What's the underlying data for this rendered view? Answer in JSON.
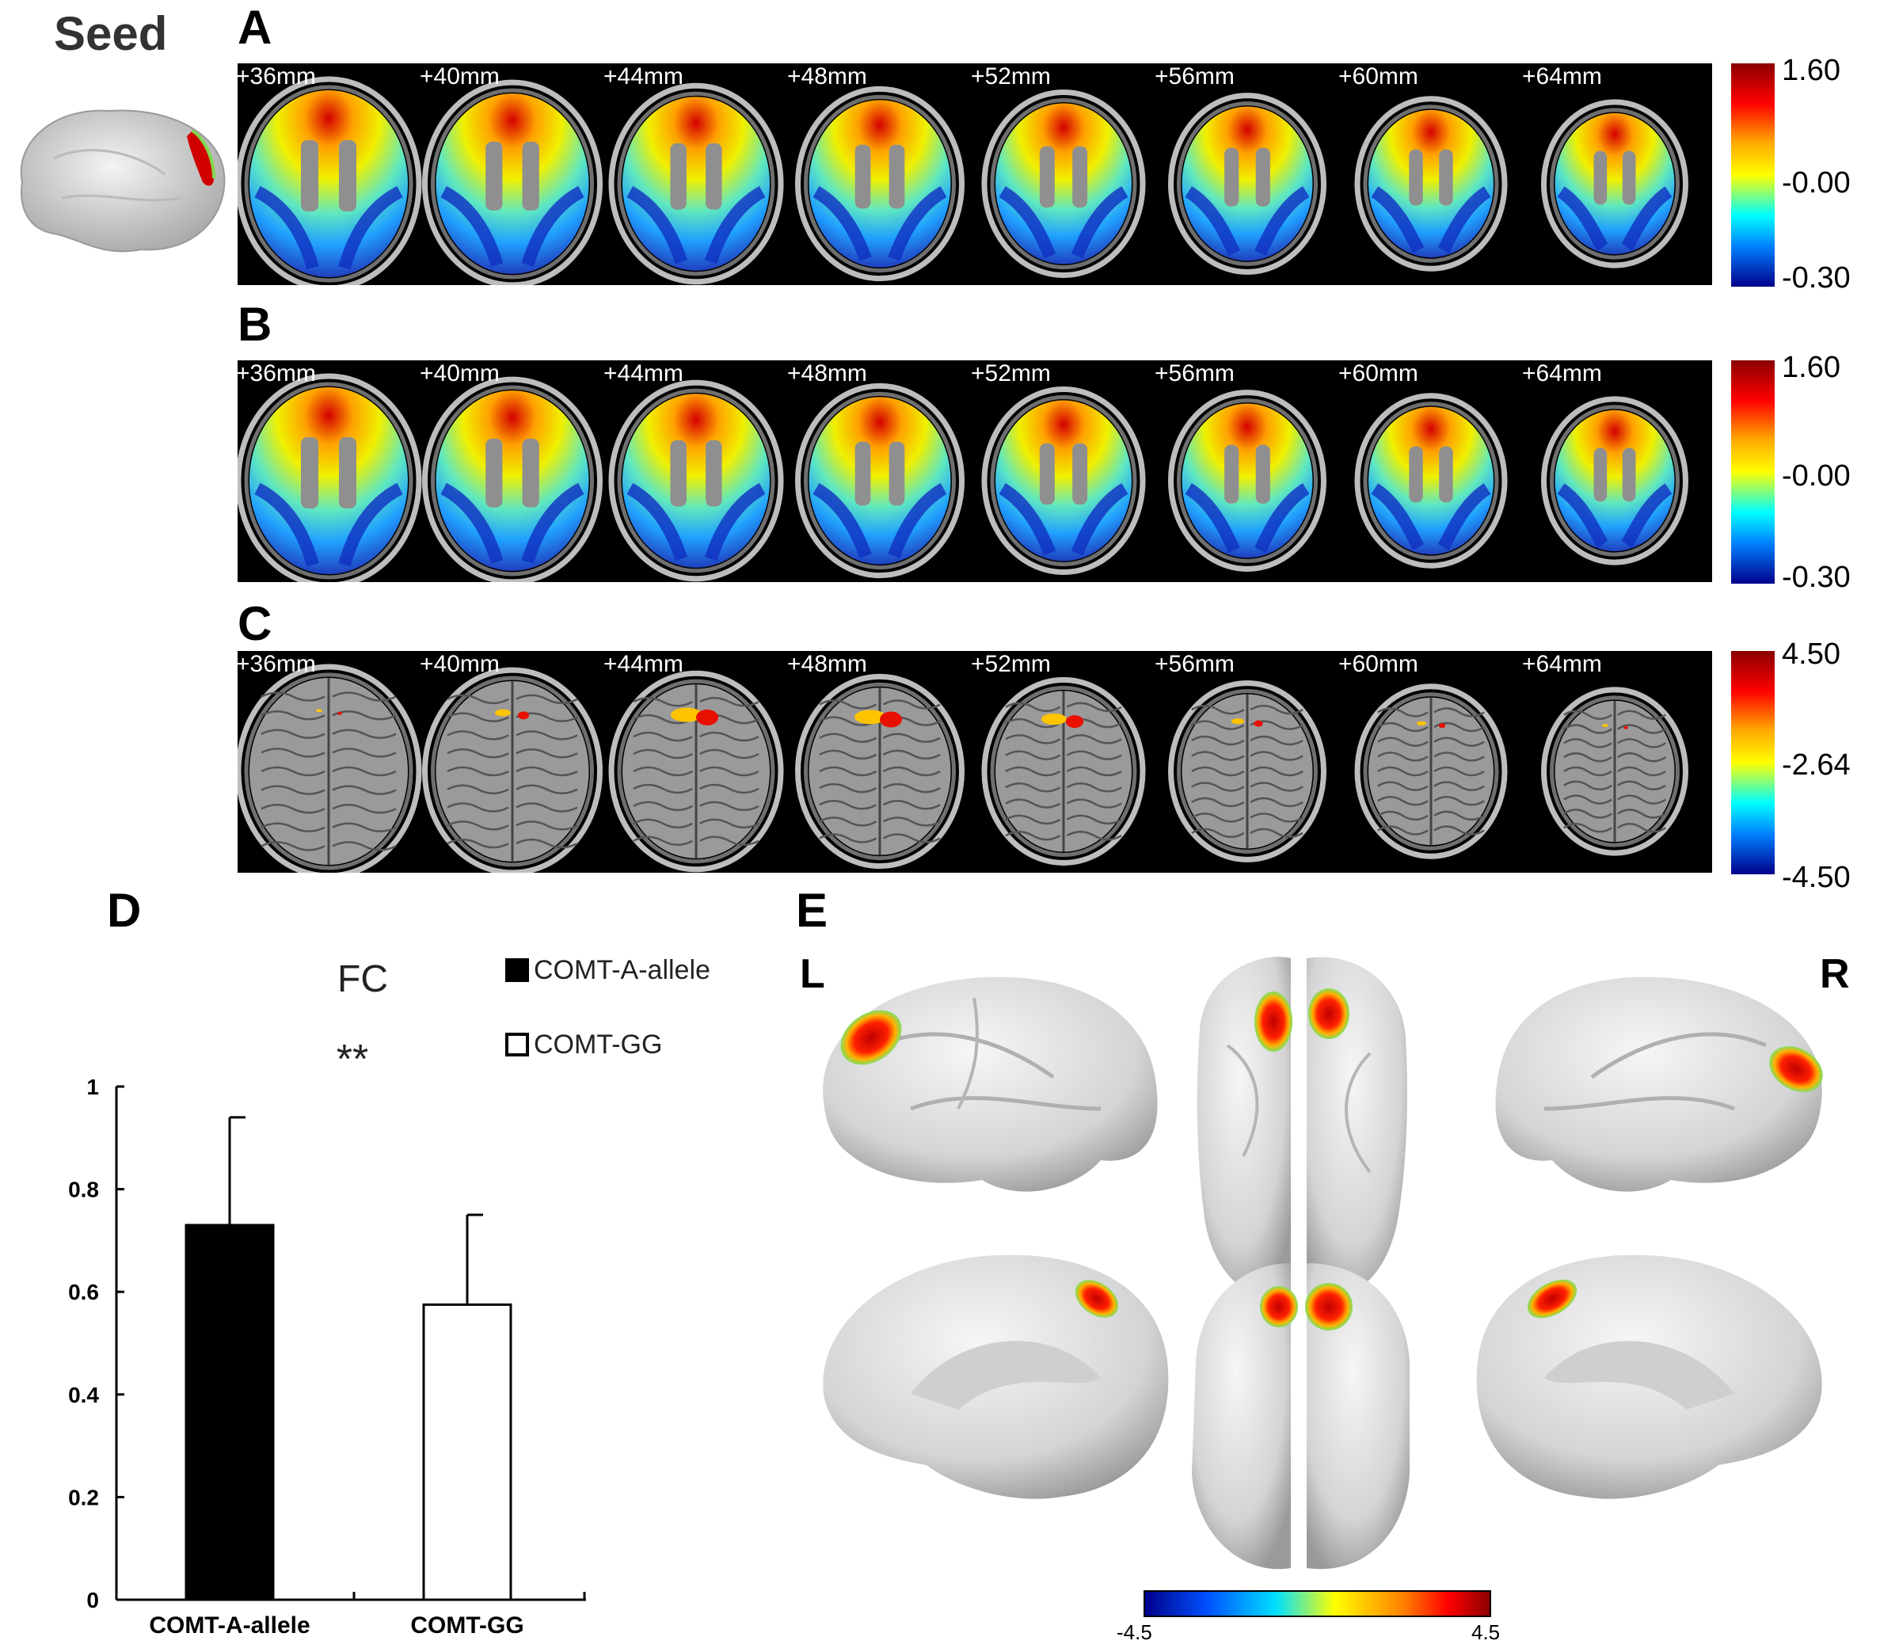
{
  "seed": {
    "title": "Seed"
  },
  "panels": {
    "A": {
      "letter": "A",
      "colorbar": {
        "max": "1.60",
        "mid": "-0.00",
        "min": "-0.30"
      }
    },
    "B": {
      "letter": "B",
      "colorbar": {
        "max": "1.60",
        "mid": "-0.00",
        "min": "-0.30"
      }
    },
    "C": {
      "letter": "C",
      "colorbar": {
        "max": "4.50",
        "mid": "-2.64",
        "min": "-4.50"
      }
    },
    "D": {
      "letter": "D"
    },
    "E": {
      "letter": "E",
      "left_label": "L",
      "right_label": "R",
      "colorbar": {
        "min": "-4.5",
        "max": "4.5"
      }
    }
  },
  "slices": [
    "+36mm",
    "+40mm",
    "+44mm",
    "+48mm",
    "+52mm",
    "+56mm",
    "+60mm",
    "+64mm"
  ],
  "colors": {
    "bar_A": "#000000",
    "bar_GG": "#ffffff",
    "strip_bg": "#000000"
  },
  "chart_data": {
    "type": "bar",
    "title": "FC",
    "annotation": "**",
    "categories": [
      "COMT-A-allele",
      "COMT-GG"
    ],
    "series": [
      {
        "name": "COMT-A-allele",
        "values": [
          0.73,
          null
        ],
        "error": [
          0.21,
          null
        ]
      },
      {
        "name": "COMT-GG",
        "values": [
          null,
          0.575
        ],
        "error": [
          null,
          0.175
        ]
      }
    ],
    "values": [
      0.73,
      0.575
    ],
    "errors": [
      0.21,
      0.175
    ],
    "yticks": [
      "0",
      "0.2",
      "0.4",
      "0.6",
      "0.8",
      "1"
    ],
    "ylim": [
      0,
      1
    ],
    "legend": "top-right",
    "grid": false
  }
}
